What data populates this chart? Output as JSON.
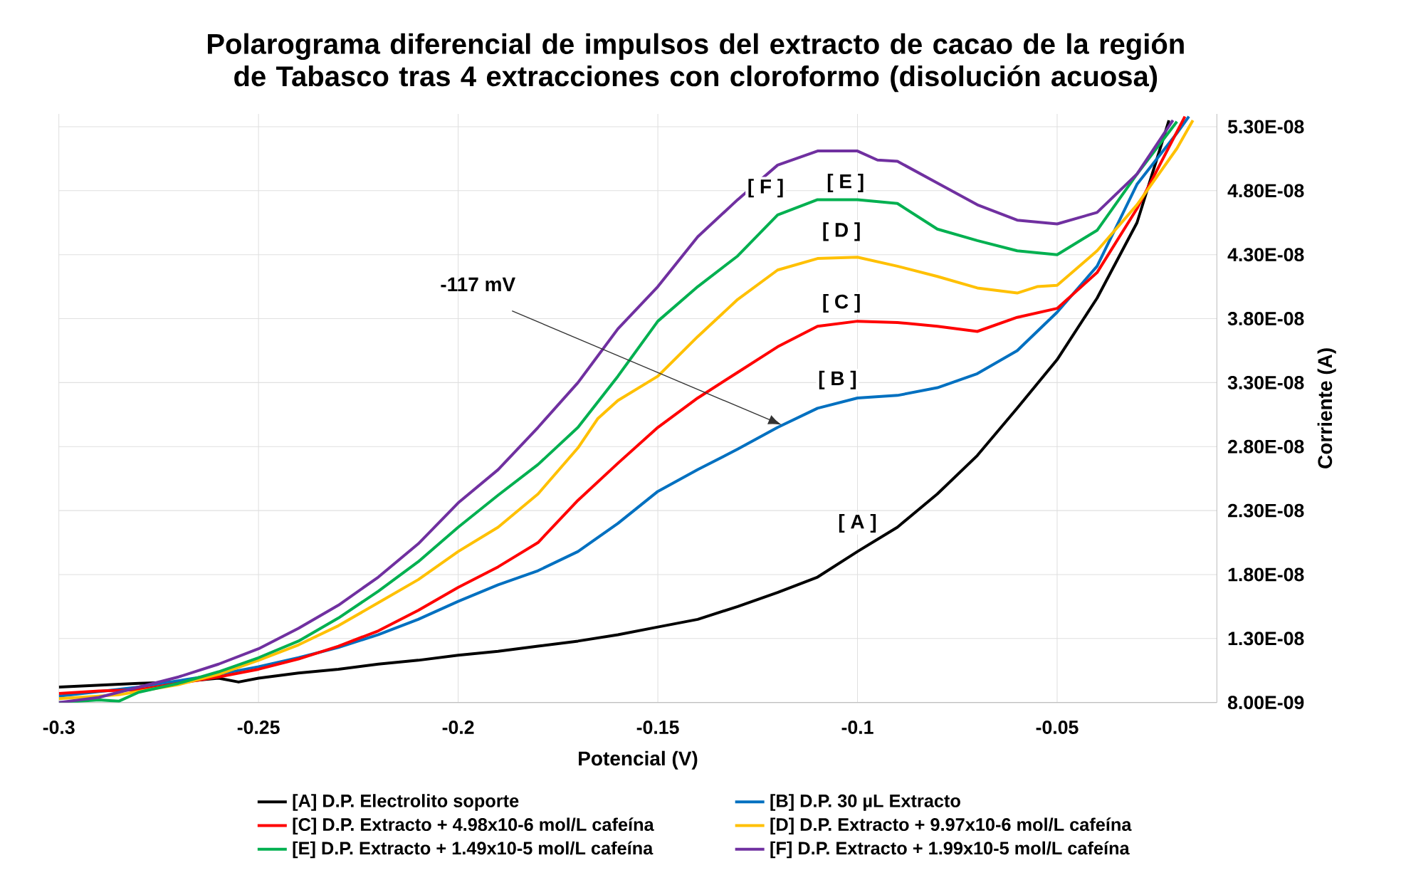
{
  "chart_data": {
    "type": "line",
    "title": "Polarograma diferencial de impulsos del extracto de cacao de la región de Tabasco tras 4 extracciones con cloroformo (disolución acuosa)",
    "xlabel": "Potencial (V)",
    "ylabel": "Corriente (A)",
    "xlim": [
      -0.3,
      -0.01
    ],
    "xticks": [
      -0.3,
      -0.25,
      -0.2,
      -0.15,
      -0.1,
      -0.05
    ],
    "ylim": [
      8e-09,
      5.4e-08
    ],
    "yticks": [
      {
        "value": 8e-09,
        "label": "8.00E-09"
      },
      {
        "value": 1.3e-08,
        "label": "1.30E-08"
      },
      {
        "value": 1.8e-08,
        "label": "1.80E-08"
      },
      {
        "value": 2.3e-08,
        "label": "2.30E-08"
      },
      {
        "value": 2.8e-08,
        "label": "2.80E-08"
      },
      {
        "value": 3.3e-08,
        "label": "3.30E-08"
      },
      {
        "value": 3.8e-08,
        "label": "3.80E-08"
      },
      {
        "value": 4.3e-08,
        "label": "4.30E-08"
      },
      {
        "value": 4.8e-08,
        "label": "4.80E-08"
      },
      {
        "value": 5.3e-08,
        "label": "5.30E-08"
      }
    ],
    "grid": true,
    "legend": "bottom",
    "series": [
      {
        "name": "[A] D.P. Electrolito soporte",
        "color": "#000000",
        "x": [
          -0.3,
          -0.28,
          -0.27,
          -0.26,
          -0.255,
          -0.25,
          -0.24,
          -0.23,
          -0.22,
          -0.21,
          -0.2,
          -0.19,
          -0.18,
          -0.17,
          -0.16,
          -0.15,
          -0.14,
          -0.13,
          -0.12,
          -0.11,
          -0.1,
          -0.09,
          -0.08,
          -0.07,
          -0.06,
          -0.05,
          -0.04,
          -0.03,
          -0.022
        ],
        "values": [
          9.2e-09,
          9.5e-09,
          9.6e-09,
          9.9e-09,
          9.6e-09,
          9.9e-09,
          1.03e-08,
          1.06e-08,
          1.1e-08,
          1.13e-08,
          1.17e-08,
          1.2e-08,
          1.24e-08,
          1.28e-08,
          1.33e-08,
          1.39e-08,
          1.45e-08,
          1.55e-08,
          1.66e-08,
          1.78e-08,
          1.98e-08,
          2.17e-08,
          2.43e-08,
          2.73e-08,
          3.1e-08,
          3.48e-08,
          3.96e-08,
          4.55e-08,
          5.35e-08
        ]
      },
      {
        "name": "[B] D.P. 30 µL Extracto",
        "color": "#0070c0",
        "x": [
          -0.3,
          -0.28,
          -0.26,
          -0.25,
          -0.24,
          -0.23,
          -0.22,
          -0.21,
          -0.2,
          -0.19,
          -0.18,
          -0.17,
          -0.16,
          -0.15,
          -0.14,
          -0.13,
          -0.12,
          -0.11,
          -0.1,
          -0.09,
          -0.08,
          -0.07,
          -0.06,
          -0.05,
          -0.04,
          -0.03,
          -0.02,
          -0.017
        ],
        "values": [
          8.5e-09,
          9.2e-09,
          1.02e-08,
          1.08e-08,
          1.15e-08,
          1.23e-08,
          1.33e-08,
          1.45e-08,
          1.59e-08,
          1.72e-08,
          1.83e-08,
          1.98e-08,
          2.2e-08,
          2.45e-08,
          2.62e-08,
          2.78e-08,
          2.95e-08,
          3.1e-08,
          3.18e-08,
          3.2e-08,
          3.26e-08,
          3.37e-08,
          3.55e-08,
          3.85e-08,
          4.21e-08,
          4.85e-08,
          5.25e-08,
          5.38e-08
        ]
      },
      {
        "name": "[C] D.P. Extracto + 4.98x10-6 mol/L cafeína",
        "color": "#ff0000",
        "x": [
          -0.3,
          -0.29,
          -0.28,
          -0.26,
          -0.25,
          -0.24,
          -0.23,
          -0.22,
          -0.21,
          -0.2,
          -0.19,
          -0.18,
          -0.17,
          -0.16,
          -0.15,
          -0.14,
          -0.13,
          -0.12,
          -0.11,
          -0.1,
          -0.09,
          -0.08,
          -0.07,
          -0.06,
          -0.05,
          -0.04,
          -0.03,
          -0.02,
          -0.018
        ],
        "values": [
          8.7e-09,
          8.9e-09,
          9e-09,
          1e-08,
          1.06e-08,
          1.14e-08,
          1.24e-08,
          1.36e-08,
          1.52e-08,
          1.7e-08,
          1.86e-08,
          2.05e-08,
          2.38e-08,
          2.67e-08,
          2.95e-08,
          3.18e-08,
          3.38e-08,
          3.58e-08,
          3.74e-08,
          3.78e-08,
          3.77e-08,
          3.74e-08,
          3.7e-08,
          3.81e-08,
          3.88e-08,
          4.16e-08,
          4.66e-08,
          5.26e-08,
          5.38e-08
        ]
      },
      {
        "name": "[D] D.P. Extracto + 9.97x10-6 mol/L cafeína",
        "color": "#ffc000",
        "x": [
          -0.3,
          -0.285,
          -0.27,
          -0.26,
          -0.25,
          -0.24,
          -0.23,
          -0.22,
          -0.21,
          -0.2,
          -0.19,
          -0.18,
          -0.17,
          -0.165,
          -0.16,
          -0.15,
          -0.14,
          -0.13,
          -0.12,
          -0.11,
          -0.1,
          -0.09,
          -0.08,
          -0.07,
          -0.06,
          -0.055,
          -0.05,
          -0.04,
          -0.03,
          -0.02,
          -0.016
        ],
        "values": [
          8.3e-09,
          8.6e-09,
          9.4e-09,
          1.02e-08,
          1.13e-08,
          1.25e-08,
          1.4e-08,
          1.58e-08,
          1.76e-08,
          1.98e-08,
          2.17e-08,
          2.43e-08,
          2.79e-08,
          3.02e-08,
          3.16e-08,
          3.35e-08,
          3.66e-08,
          3.95e-08,
          4.18e-08,
          4.27e-08,
          4.28e-08,
          4.21e-08,
          4.13e-08,
          4.04e-08,
          4e-08,
          4.05e-08,
          4.06e-08,
          4.33e-08,
          4.69e-08,
          5.13e-08,
          5.35e-08
        ]
      },
      {
        "name": "[E] D.P. Extracto + 1.49x10-5 mol/L cafeína",
        "color": "#00b050",
        "x": [
          -0.3,
          -0.29,
          -0.285,
          -0.28,
          -0.27,
          -0.26,
          -0.25,
          -0.24,
          -0.23,
          -0.22,
          -0.21,
          -0.2,
          -0.19,
          -0.18,
          -0.17,
          -0.16,
          -0.15,
          -0.14,
          -0.13,
          -0.12,
          -0.11,
          -0.1,
          -0.09,
          -0.08,
          -0.07,
          -0.06,
          -0.05,
          -0.04,
          -0.03,
          -0.02
        ],
        "values": [
          8e-09,
          8.2e-09,
          8.1e-09,
          8.8e-09,
          9.5e-09,
          1.04e-08,
          1.15e-08,
          1.28e-08,
          1.46e-08,
          1.67e-08,
          1.9e-08,
          2.17e-08,
          2.42e-08,
          2.66e-08,
          2.95e-08,
          3.35e-08,
          3.78e-08,
          4.05e-08,
          4.29e-08,
          4.61e-08,
          4.73e-08,
          4.73e-08,
          4.7e-08,
          4.5e-08,
          4.41e-08,
          4.33e-08,
          4.3e-08,
          4.49e-08,
          4.93e-08,
          5.34e-08
        ]
      },
      {
        "name": "[F] D.P. Extracto + 1.99x10-5 mol/L cafeína",
        "color": "#7030a0",
        "x": [
          -0.3,
          -0.29,
          -0.28,
          -0.27,
          -0.26,
          -0.25,
          -0.24,
          -0.23,
          -0.22,
          -0.21,
          -0.2,
          -0.19,
          -0.18,
          -0.17,
          -0.16,
          -0.15,
          -0.14,
          -0.13,
          -0.12,
          -0.11,
          -0.1,
          -0.095,
          -0.09,
          -0.08,
          -0.07,
          -0.06,
          -0.05,
          -0.04,
          -0.03,
          -0.021
        ],
        "values": [
          8e-09,
          8.4e-09,
          9.2e-09,
          1e-08,
          1.1e-08,
          1.22e-08,
          1.38e-08,
          1.56e-08,
          1.78e-08,
          2.04e-08,
          2.36e-08,
          2.62e-08,
          2.95e-08,
          3.3e-08,
          3.72e-08,
          4.05e-08,
          4.44e-08,
          4.73e-08,
          5e-08,
          5.11e-08,
          5.11e-08,
          5.04e-08,
          5.03e-08,
          4.86e-08,
          4.69e-08,
          4.57e-08,
          4.54e-08,
          4.63e-08,
          4.93e-08,
          5.35e-08
        ]
      }
    ],
    "annotations": [
      {
        "text": "[ A ]",
        "x": -0.1,
        "y": 2.2e-08
      },
      {
        "text": "[ B ]",
        "x": -0.105,
        "y": 3.32e-08
      },
      {
        "text": "[ C ]",
        "x": -0.104,
        "y": 3.92e-08
      },
      {
        "text": "[ D ]",
        "x": -0.104,
        "y": 4.48e-08
      },
      {
        "text": "[ E ]",
        "x": -0.103,
        "y": 4.86e-08
      },
      {
        "text": "[ F ]",
        "x": -0.123,
        "y": 4.82e-08
      },
      {
        "text": "-117 mV",
        "x": -0.119,
        "y": 2.97e-08
      }
    ]
  }
}
